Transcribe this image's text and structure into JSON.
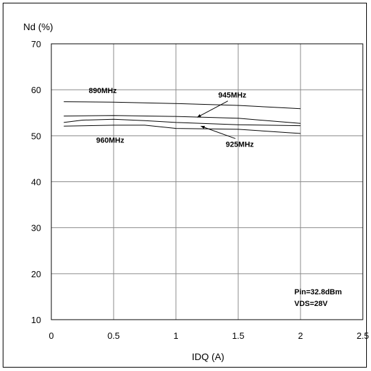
{
  "chart_data": {
    "type": "line",
    "title": "",
    "xlabel": "IDQ (A)",
    "ylabel": "Nd (%)",
    "xlim": [
      0,
      2.5
    ],
    "ylim": [
      10,
      70
    ],
    "xticks": [
      0,
      0.5,
      1,
      1.5,
      2,
      2.5
    ],
    "xtick_labels": [
      "0",
      "0.5",
      "1",
      "1.5",
      "2",
      "2.5"
    ],
    "yticks": [
      10,
      20,
      30,
      40,
      50,
      60,
      70
    ],
    "ytick_labels": [
      "10",
      "20",
      "30",
      "40",
      "50",
      "60",
      "70"
    ],
    "grid": true,
    "series": [
      {
        "name": "890MHz",
        "x": [
          0.1,
          0.5,
          1.0,
          1.5,
          2.0
        ],
        "y": [
          57.4,
          57.3,
          57.0,
          56.6,
          55.9
        ]
      },
      {
        "name": "945MHz",
        "x": [
          0.1,
          0.5,
          1.0,
          1.5,
          2.0
        ],
        "y": [
          54.3,
          54.4,
          54.2,
          53.8,
          52.7
        ]
      },
      {
        "name": "960MHz",
        "x": [
          0.1,
          0.25,
          0.5,
          0.75,
          1.0,
          1.5,
          2.0
        ],
        "y": [
          52.9,
          53.4,
          53.6,
          53.3,
          52.9,
          52.4,
          52.2
        ]
      },
      {
        "name": "925MHz",
        "x": [
          0.1,
          0.5,
          0.75,
          1.0,
          1.5,
          2.0
        ],
        "y": [
          52.1,
          52.3,
          52.3,
          51.6,
          51.4,
          50.5
        ]
      }
    ],
    "annotations": [
      {
        "text": "890MHz",
        "x": 0.3,
        "y": 59.3
      },
      {
        "text": "945MHz",
        "x": 1.34,
        "y": 58.3,
        "arrow_to": [
          1.17,
          54.0
        ]
      },
      {
        "text": "960MHz",
        "x": 0.36,
        "y": 48.5
      },
      {
        "text": "925MHz",
        "x": 1.4,
        "y": 47.6,
        "arrow_to": [
          1.2,
          52.1
        ]
      }
    ],
    "notes": [
      "Pin=32.8dBm",
      "VDS=28V"
    ]
  }
}
